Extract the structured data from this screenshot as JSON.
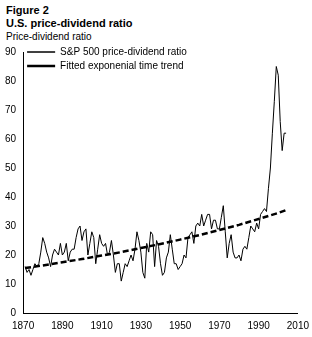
{
  "chart_data": {
    "type": "line",
    "title": "Figure 2",
    "subtitle": "U.S. price-dividend ratio",
    "y_label": "Price-dividend ratio",
    "xlim": [
      1870,
      2010
    ],
    "xticks": [
      1870,
      1890,
      1910,
      1930,
      1950,
      1970,
      1990,
      2010
    ],
    "ylim": [
      0,
      90
    ],
    "yticks": [
      0,
      10,
      20,
      30,
      40,
      50,
      60,
      70,
      80,
      90
    ],
    "grid": false,
    "legend": "upper left",
    "series": [
      {
        "name": "S&P 500 price-dividend ratio",
        "color": "#000000",
        "line_style": "solid",
        "x": [
          1871,
          1872,
          1873,
          1874,
          1875,
          1876,
          1877,
          1878,
          1879,
          1880,
          1881,
          1882,
          1883,
          1884,
          1885,
          1886,
          1887,
          1888,
          1889,
          1890,
          1891,
          1892,
          1893,
          1894,
          1895,
          1896,
          1897,
          1898,
          1899,
          1900,
          1901,
          1902,
          1903,
          1904,
          1905,
          1906,
          1907,
          1908,
          1909,
          1910,
          1911,
          1912,
          1913,
          1914,
          1915,
          1916,
          1917,
          1918,
          1919,
          1920,
          1921,
          1922,
          1923,
          1924,
          1925,
          1926,
          1927,
          1928,
          1929,
          1930,
          1931,
          1932,
          1933,
          1934,
          1935,
          1936,
          1937,
          1938,
          1939,
          1940,
          1941,
          1942,
          1943,
          1944,
          1945,
          1946,
          1947,
          1948,
          1949,
          1950,
          1951,
          1952,
          1953,
          1954,
          1955,
          1956,
          1957,
          1958,
          1959,
          1960,
          1961,
          1962,
          1963,
          1964,
          1965,
          1966,
          1967,
          1968,
          1969,
          1970,
          1971,
          1972,
          1973,
          1974,
          1975,
          1976,
          1977,
          1978,
          1979,
          1980,
          1981,
          1982,
          1983,
          1984,
          1985,
          1986,
          1987,
          1988,
          1989,
          1990,
          1991,
          1992,
          1993,
          1994,
          1995,
          1996,
          1997,
          1998,
          1999,
          2000,
          2001,
          2002,
          2003,
          2004
        ],
        "values": [
          16,
          14,
          15,
          13,
          15,
          17,
          16,
          17,
          21,
          26,
          24,
          21,
          19,
          16,
          20,
          22,
          21,
          20,
          24,
          20,
          21,
          24,
          18,
          21,
          22,
          22,
          26,
          29,
          30,
          25,
          28,
          29,
          20,
          24,
          28,
          26,
          17,
          22,
          27,
          24,
          23,
          24,
          20,
          21,
          25,
          20,
          14,
          17,
          17,
          11,
          14,
          17,
          16,
          18,
          20,
          18,
          22,
          28,
          25,
          21,
          14,
          12,
          24,
          21,
          28,
          27,
          16,
          25,
          23,
          17,
          13,
          14,
          19,
          21,
          27,
          22,
          17,
          17,
          15,
          16,
          17,
          20,
          19,
          26,
          27,
          28,
          24,
          30,
          31,
          30,
          34,
          30,
          32,
          34,
          34,
          29,
          32,
          32,
          29,
          29,
          33,
          37,
          28,
          19,
          24,
          27,
          21,
          19,
          19,
          20,
          18,
          22,
          23,
          22,
          26,
          30,
          29,
          28,
          31,
          29,
          34,
          35,
          36,
          35,
          43,
          50,
          62,
          73,
          85,
          82,
          66,
          56,
          62,
          62
        ]
      },
      {
        "name": "Fitted exponenial time trend",
        "color": "#000000",
        "line_style": "dashed",
        "x": [
          1871,
          1880,
          1890,
          1900,
          1910,
          1920,
          1930,
          1940,
          1950,
          1960,
          1970,
          1980,
          1990,
          2000,
          2004
        ],
        "values": [
          15.5,
          16.4,
          17.5,
          18.6,
          19.8,
          21.0,
          22.4,
          23.8,
          25.3,
          26.9,
          28.6,
          30.4,
          32.4,
          34.5,
          35.5
        ]
      }
    ]
  }
}
